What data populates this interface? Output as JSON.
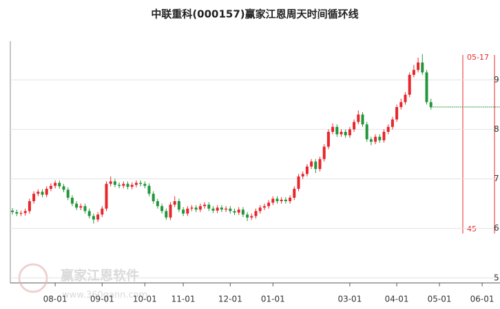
{
  "chart_data": {
    "type": "candlestick",
    "title": "中联重科(000157)赢家江恩周天时间循环线",
    "categories": [
      null,
      null,
      null,
      null,
      null,
      null,
      null,
      null,
      null,
      null,
      "08-01",
      null,
      null,
      null,
      null,
      null,
      null,
      null,
      null,
      null,
      null,
      "09-01",
      null,
      null,
      null,
      null,
      null,
      null,
      null,
      null,
      null,
      "10-01",
      null,
      null,
      null,
      null,
      null,
      null,
      null,
      null,
      "11-01",
      null,
      null,
      null,
      null,
      null,
      null,
      null,
      null,
      null,
      null,
      "12-01",
      null,
      null,
      null,
      null,
      null,
      null,
      null,
      null,
      null,
      "01-01",
      null,
      null,
      null,
      null,
      null,
      null,
      null,
      null,
      null,
      null,
      null,
      null,
      null,
      null,
      null,
      null,
      null,
      "03-01",
      null,
      null,
      null,
      null,
      null,
      null,
      null,
      null,
      null,
      null,
      "04-01",
      null,
      null,
      null,
      null,
      null,
      null,
      null,
      null,
      null,
      "05-01",
      null,
      null,
      null,
      null,
      null,
      null,
      null,
      null,
      null,
      "06-01",
      null
    ],
    "open": [
      6.36,
      6.33,
      6.3,
      6.31,
      6.35,
      6.55,
      6.7,
      6.74,
      6.68,
      6.8,
      6.86,
      6.92,
      6.85,
      6.78,
      6.62,
      6.5,
      6.42,
      6.45,
      6.35,
      6.25,
      6.18,
      6.28,
      6.4,
      6.9,
      6.95,
      6.88,
      6.86,
      6.9,
      6.84,
      6.88,
      6.92,
      6.9,
      6.86,
      6.7,
      6.55,
      6.45,
      6.35,
      6.22,
      6.48,
      6.55,
      6.38,
      6.3,
      6.4,
      6.42,
      6.38,
      6.45,
      6.48,
      6.4,
      6.36,
      6.42,
      6.38,
      6.4,
      6.35,
      6.32,
      6.38,
      6.28,
      6.22,
      6.25,
      6.35,
      6.42,
      6.45,
      6.52,
      6.6,
      6.55,
      6.58,
      6.55,
      6.62,
      6.8,
      7.05,
      7.1,
      7.25,
      7.35,
      7.2,
      7.4,
      7.65,
      7.95,
      8.05,
      7.9,
      7.95,
      7.88,
      8.0,
      8.15,
      8.3,
      8.1,
      7.8,
      7.75,
      7.85,
      7.78,
      7.95,
      8.05,
      8.2,
      8.45,
      8.55,
      8.7,
      9.1,
      9.2,
      9.35,
      9.15,
      8.55,
      null,
      null,
      null,
      null,
      null,
      null,
      null,
      null,
      null,
      null,
      null,
      null,
      null
    ],
    "close": [
      6.33,
      6.3,
      6.31,
      6.35,
      6.55,
      6.7,
      6.74,
      6.68,
      6.8,
      6.86,
      6.92,
      6.85,
      6.78,
      6.62,
      6.5,
      6.42,
      6.45,
      6.35,
      6.25,
      6.18,
      6.28,
      6.4,
      6.9,
      6.95,
      6.88,
      6.86,
      6.9,
      6.84,
      6.88,
      6.92,
      6.9,
      6.86,
      6.7,
      6.55,
      6.45,
      6.35,
      6.22,
      6.48,
      6.55,
      6.38,
      6.3,
      6.4,
      6.42,
      6.38,
      6.45,
      6.48,
      6.4,
      6.36,
      6.42,
      6.38,
      6.4,
      6.35,
      6.32,
      6.38,
      6.28,
      6.22,
      6.25,
      6.35,
      6.42,
      6.45,
      6.52,
      6.6,
      6.55,
      6.58,
      6.55,
      6.62,
      6.8,
      7.05,
      7.1,
      7.25,
      7.35,
      7.2,
      7.4,
      7.65,
      7.95,
      8.05,
      7.9,
      7.95,
      7.88,
      8.0,
      8.15,
      8.3,
      8.1,
      7.8,
      7.75,
      7.85,
      7.78,
      7.95,
      8.05,
      8.2,
      8.45,
      8.55,
      8.7,
      9.1,
      9.2,
      9.35,
      9.15,
      8.55,
      8.45,
      null,
      null,
      null,
      null,
      null,
      null,
      null,
      null,
      null,
      null,
      null,
      null,
      null
    ],
    "high": [
      6.41,
      6.38,
      6.36,
      6.4,
      6.6,
      6.75,
      6.79,
      6.79,
      6.85,
      6.91,
      6.97,
      6.97,
      6.9,
      6.83,
      6.67,
      6.55,
      6.5,
      6.5,
      6.4,
      6.3,
      6.33,
      6.45,
      6.95,
      7.05,
      7.0,
      6.93,
      6.95,
      6.95,
      6.93,
      6.97,
      6.97,
      6.95,
      6.91,
      6.75,
      6.6,
      6.5,
      6.4,
      6.53,
      6.65,
      6.6,
      6.43,
      6.45,
      6.47,
      6.47,
      6.5,
      6.53,
      6.53,
      6.45,
      6.47,
      6.47,
      6.45,
      6.45,
      6.4,
      6.43,
      6.43,
      6.33,
      6.3,
      6.4,
      6.47,
      6.5,
      6.57,
      6.65,
      6.65,
      6.63,
      6.63,
      6.67,
      6.85,
      7.1,
      7.15,
      7.3,
      7.4,
      7.4,
      7.45,
      7.7,
      8.0,
      8.12,
      8.1,
      8.0,
      8.0,
      8.05,
      8.2,
      8.38,
      8.35,
      8.15,
      7.85,
      7.9,
      7.9,
      8.0,
      8.1,
      8.25,
      8.5,
      8.62,
      8.75,
      9.15,
      9.3,
      9.45,
      9.52,
      9.2,
      8.62,
      null,
      null,
      null,
      null,
      null,
      null,
      null,
      null,
      null,
      null,
      null,
      null,
      null
    ],
    "low": [
      6.28,
      6.25,
      6.25,
      6.26,
      6.3,
      6.5,
      6.65,
      6.63,
      6.63,
      6.75,
      6.81,
      6.8,
      6.73,
      6.57,
      6.45,
      6.37,
      6.37,
      6.3,
      6.2,
      6.1,
      6.13,
      6.23,
      6.35,
      6.85,
      6.83,
      6.81,
      6.81,
      6.79,
      6.79,
      6.83,
      6.85,
      6.81,
      6.65,
      6.5,
      6.4,
      6.3,
      6.17,
      6.17,
      6.43,
      6.33,
      6.25,
      6.25,
      6.35,
      6.33,
      6.33,
      6.4,
      6.35,
      6.31,
      6.31,
      6.33,
      6.33,
      6.3,
      6.27,
      6.27,
      6.23,
      6.15,
      6.17,
      6.2,
      6.3,
      6.37,
      6.4,
      6.47,
      6.5,
      6.5,
      6.5,
      6.5,
      6.57,
      6.75,
      7.0,
      7.05,
      7.2,
      7.12,
      7.15,
      7.35,
      7.6,
      7.9,
      7.85,
      7.85,
      7.83,
      7.83,
      7.95,
      8.1,
      8.05,
      7.75,
      7.68,
      7.7,
      7.73,
      7.73,
      7.9,
      8.0,
      8.15,
      8.4,
      8.5,
      8.65,
      9.05,
      9.15,
      9.1,
      8.5,
      8.4,
      null,
      null,
      null,
      null,
      null,
      null,
      null,
      null,
      null,
      null,
      null,
      null,
      null
    ],
    "up_color": "#e8262b",
    "down_color": "#23963a",
    "ylim": [
      4.9,
      9.78
    ],
    "yticks": [
      5,
      6,
      7,
      8,
      9
    ],
    "grid": true,
    "annotation": {
      "label": "05-17",
      "count": "45"
    },
    "watermark": {
      "name": "赢家江恩软件",
      "url": "www.360gann.com"
    }
  }
}
